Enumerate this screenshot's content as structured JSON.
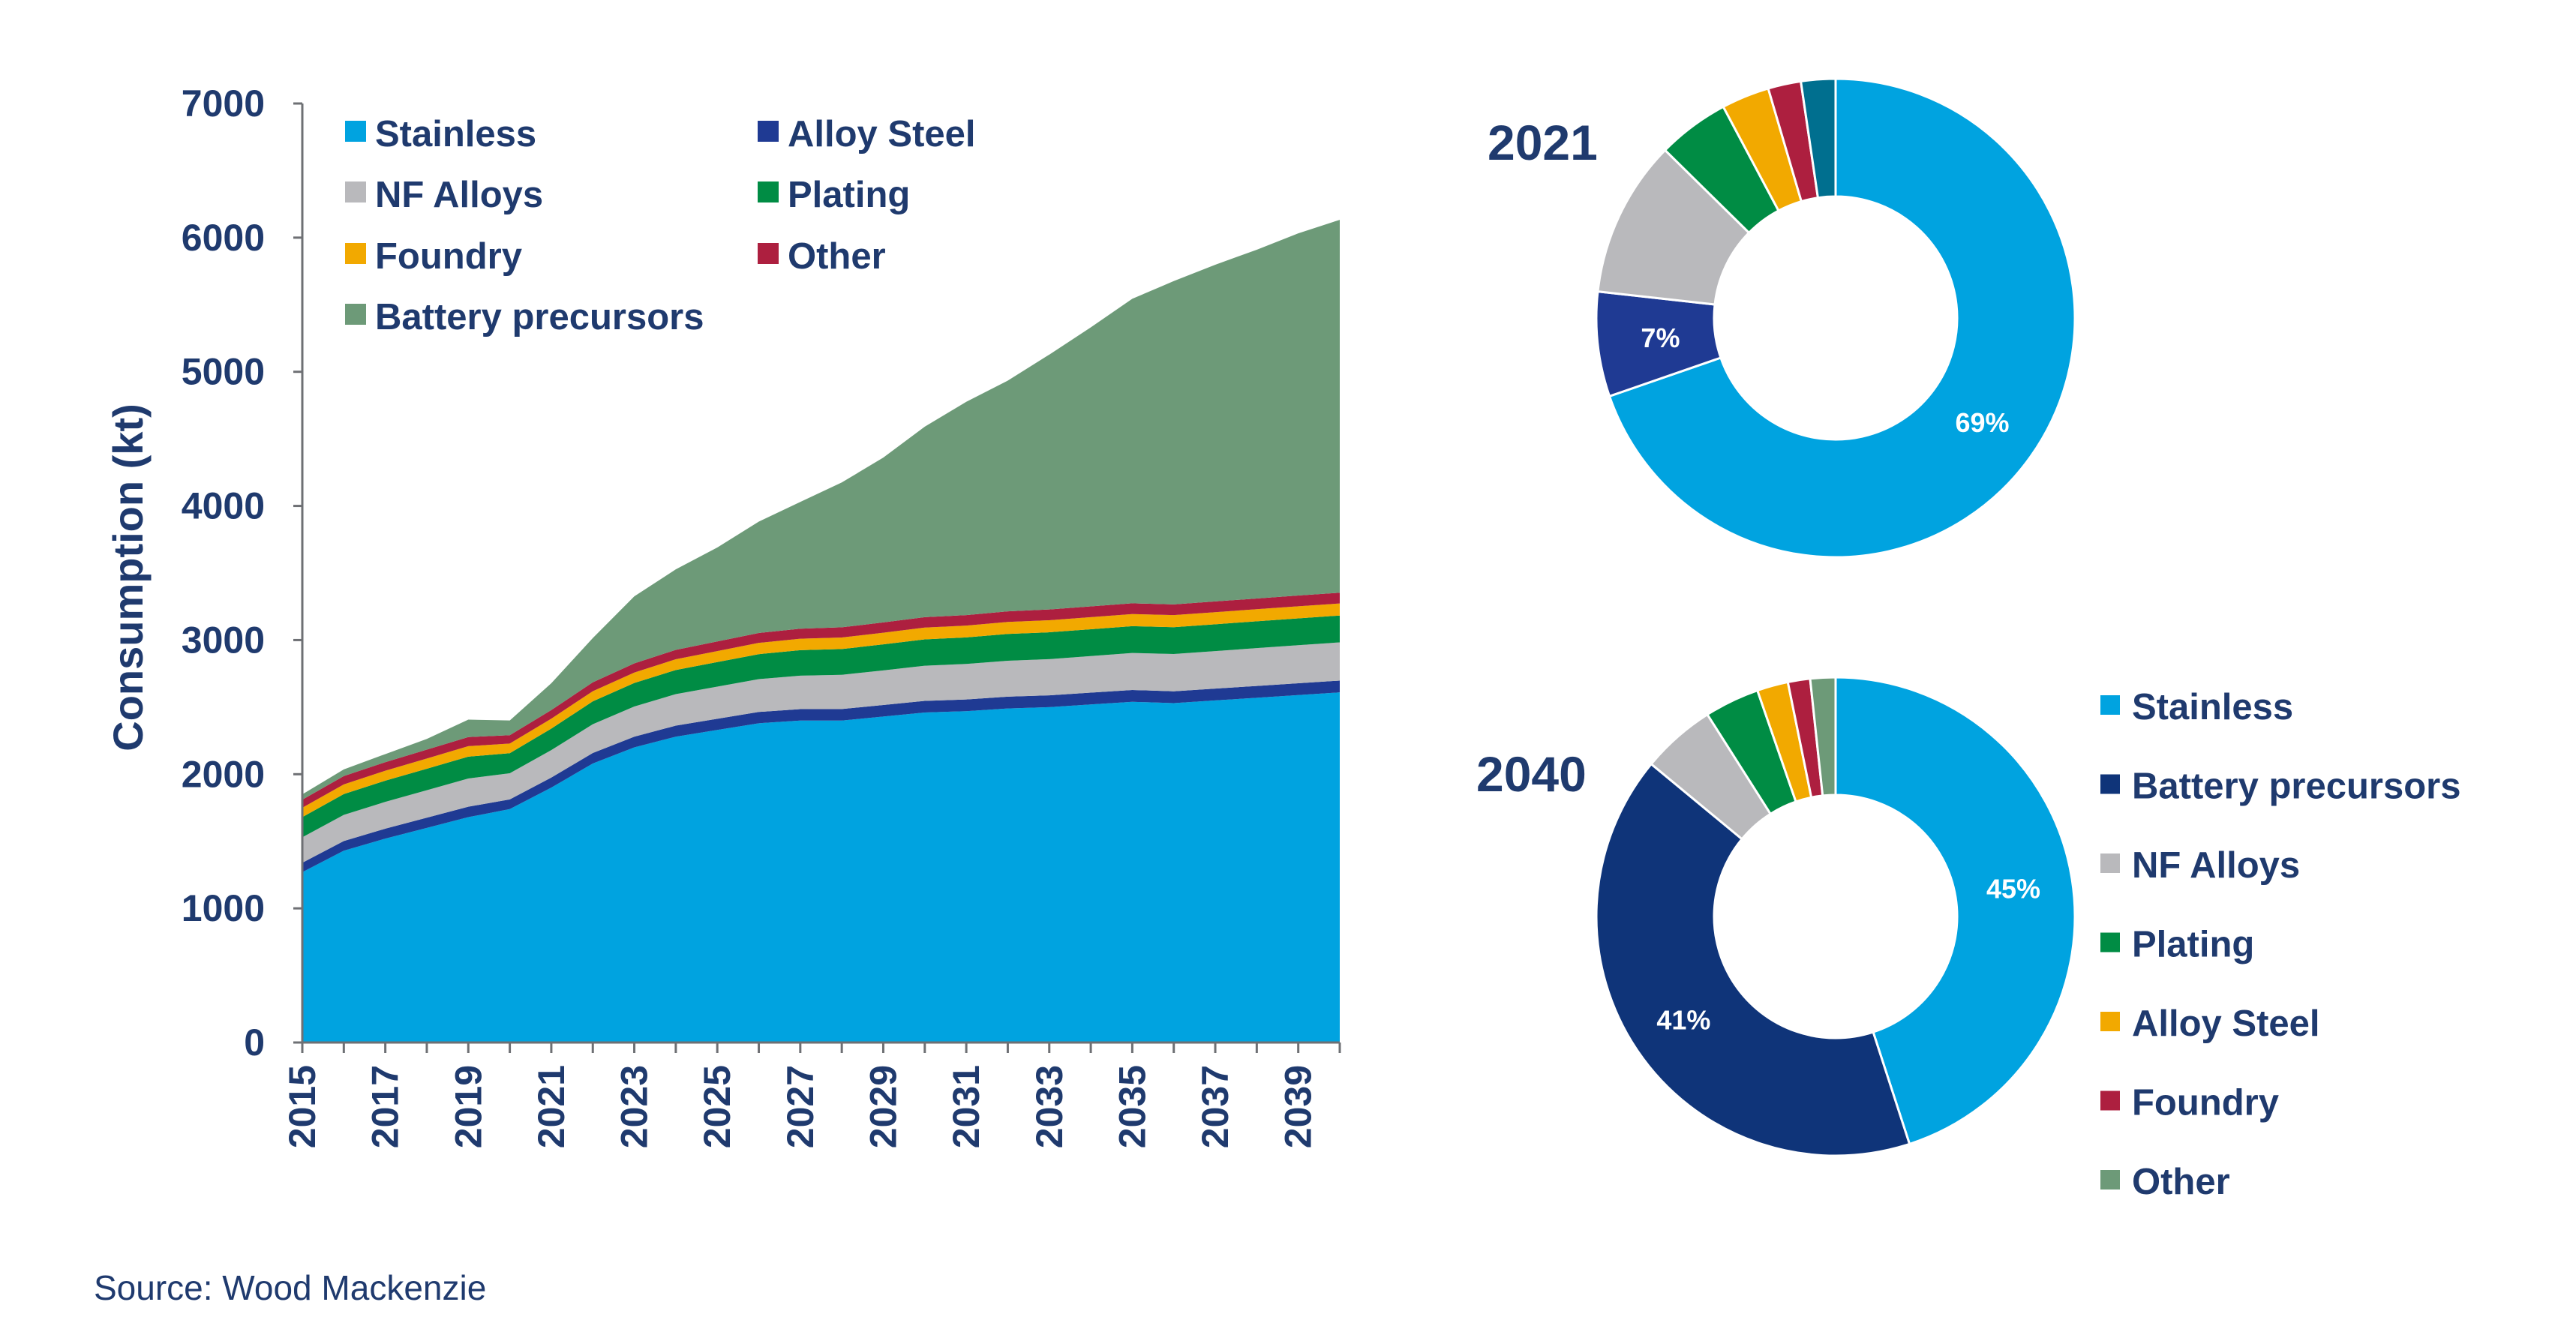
{
  "source": "Source: Wood Mackenzie",
  "colors": {
    "Stainless": "#00a3e0",
    "Alloy Steel": "#1f3a93",
    "Battery precursors 2040": "#0f3479",
    "NF Alloys": "#b9b9bc",
    "Plating": "#008c44",
    "Foundry": "#f2a900",
    "Other": "#ad1f3f",
    "Battery precursors": "#6d9a78",
    "Other 2021 pie": "#006f8f",
    "Alloy Steel 2040 pie": "#f2a900",
    "Foundry 2040 pie": "#ad1f3f",
    "Other 2040 pie": "#6d9a78"
  },
  "chart_data": [
    {
      "type": "area",
      "stacked": true,
      "ylabel": "Consumption (kt)",
      "xlabel": "",
      "ylim": [
        0,
        7000
      ],
      "yticks": [
        0,
        1000,
        2000,
        3000,
        4000,
        5000,
        6000,
        7000
      ],
      "xticks": [
        "2015",
        "2017",
        "2019",
        "2021",
        "2023",
        "2025",
        "2027",
        "2029",
        "2031",
        "2033",
        "2035",
        "2037",
        "2039"
      ],
      "x": [
        2015,
        2016,
        2017,
        2018,
        2019,
        2020,
        2021,
        2022,
        2023,
        2024,
        2025,
        2026,
        2027,
        2028,
        2029,
        2030,
        2031,
        2032,
        2033,
        2034,
        2035,
        2036,
        2037,
        2038,
        2039,
        2040
      ],
      "legend": [
        "Stainless",
        "Alloy Steel",
        "NF Alloys",
        "Plating",
        "Foundry",
        "Other",
        "Battery precursors"
      ],
      "legend_position": "top-left",
      "series": [
        {
          "name": "Stainless",
          "values": [
            1270,
            1430,
            1520,
            1600,
            1680,
            1740,
            1900,
            2080,
            2200,
            2280,
            2330,
            2380,
            2400,
            2400,
            2430,
            2460,
            2470,
            2490,
            2500,
            2520,
            2540,
            2530,
            2550,
            2570,
            2590,
            2610
          ]
        },
        {
          "name": "Alloy Steel",
          "values": [
            70,
            72,
            74,
            76,
            78,
            72,
            75,
            78,
            80,
            82,
            83,
            84,
            85,
            86,
            86,
            87,
            87,
            88,
            88,
            88,
            88,
            88,
            88,
            88,
            88,
            88
          ]
        },
        {
          "name": "NF Alloys",
          "values": [
            190,
            195,
            200,
            205,
            210,
            195,
            205,
            215,
            225,
            235,
            240,
            245,
            250,
            255,
            258,
            262,
            265,
            268,
            270,
            273,
            276,
            278,
            280,
            282,
            284,
            285
          ]
        },
        {
          "name": "Plating",
          "values": [
            150,
            155,
            158,
            160,
            163,
            150,
            160,
            170,
            175,
            180,
            183,
            186,
            190,
            192,
            194,
            196,
            198,
            200,
            200,
            200,
            200,
            200,
            200,
            200,
            200,
            200
          ]
        },
        {
          "name": "Foundry",
          "values": [
            70,
            72,
            74,
            76,
            78,
            72,
            74,
            76,
            78,
            80,
            82,
            84,
            85,
            86,
            87,
            88,
            88,
            89,
            90,
            90,
            90,
            90,
            90,
            90,
            90,
            90
          ]
        },
        {
          "name": "Other",
          "values": [
            60,
            62,
            64,
            66,
            68,
            62,
            64,
            66,
            68,
            70,
            72,
            74,
            75,
            76,
            77,
            78,
            78,
            79,
            80,
            80,
            80,
            80,
            80,
            80,
            80,
            80
          ]
        },
        {
          "name": "Battery precursors",
          "values": [
            40,
            50,
            60,
            80,
            130,
            110,
            200,
            330,
            500,
            600,
            700,
            830,
            945,
            1080,
            1228,
            1420,
            1590,
            1720,
            1900,
            2080,
            2270,
            2410,
            2510,
            2600,
            2700,
            2780
          ]
        }
      ]
    },
    {
      "type": "pie",
      "donut": true,
      "title": "2021",
      "slices": [
        {
          "name": "Stainless",
          "value": 69,
          "label": "69%",
          "color_key": "Stainless"
        },
        {
          "name": "Alloy Steel",
          "value": 7,
          "label": "7%",
          "color_key": "Alloy Steel"
        },
        {
          "name": "NF Alloys",
          "value": 10.5,
          "label": "",
          "color_key": "NF Alloys"
        },
        {
          "name": "Plating",
          "value": 4.8,
          "label": "",
          "color_key": "Plating"
        },
        {
          "name": "Foundry",
          "value": 3.2,
          "label": "",
          "color_key": "Foundry"
        },
        {
          "name": "Other",
          "value": 2.2,
          "label": "",
          "color_key": "Other"
        },
        {
          "name": "Other 2",
          "value": 2.3,
          "label": "",
          "color_key": "Other 2021 pie"
        }
      ]
    },
    {
      "type": "pie",
      "donut": true,
      "title": "2040",
      "legend": [
        "Stainless",
        "Battery precursors",
        "NF Alloys",
        "Plating",
        "Alloy Steel",
        "Foundry",
        "Other"
      ],
      "slices": [
        {
          "name": "Stainless",
          "value": 45,
          "label": "45%",
          "color_key": "Stainless"
        },
        {
          "name": "Battery precursors",
          "value": 41,
          "label": "41%",
          "color_key": "Battery precursors 2040"
        },
        {
          "name": "NF Alloys",
          "value": 5,
          "label": "",
          "color_key": "NF Alloys"
        },
        {
          "name": "Plating",
          "value": 3.7,
          "label": "",
          "color_key": "Plating"
        },
        {
          "name": "Alloy Steel",
          "value": 2.1,
          "label": "",
          "color_key": "Alloy Steel 2040 pie"
        },
        {
          "name": "Foundry",
          "value": 1.5,
          "label": "",
          "color_key": "Foundry 2040 pie"
        },
        {
          "name": "Other",
          "value": 1.7,
          "label": "",
          "color_key": "Other 2040 pie"
        }
      ]
    }
  ]
}
